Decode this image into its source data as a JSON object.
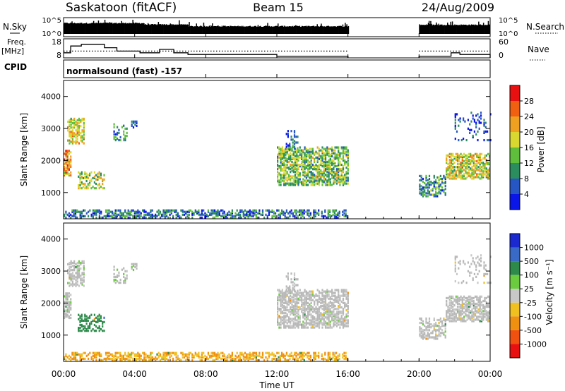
{
  "header": {
    "station": "Saskatoon (fitACF)",
    "beam": "Beam 15",
    "date": "24/Aug/2009"
  },
  "noise_panel": {
    "left_label": "N.Sky",
    "right_label": "N.Search",
    "left_ticks": [
      "10^5",
      "10^0"
    ],
    "right_ticks": [
      "10^5",
      "10^0"
    ]
  },
  "freq_panel": {
    "left_label_line1": "Freq.",
    "left_label_line2": "[MHz]",
    "right_label": "Nave",
    "left_ticks": [
      "18",
      "8"
    ],
    "right_ticks": [
      "60",
      "0"
    ]
  },
  "cpid": {
    "label": "CPID",
    "program": "normalsound (fast) -157"
  },
  "x_axis": {
    "ticks": [
      "00:00",
      "04:00",
      "08:00",
      "12:00",
      "16:00",
      "20:00",
      "00:00"
    ],
    "title": "Time UT"
  },
  "power_panel": {
    "ylabel": "Slant Range [km]",
    "yticks": [
      "1000",
      "2000",
      "3000",
      "4000"
    ],
    "colorbar_label": "Power [dB]",
    "colorbar_ticks": [
      "4",
      "8",
      "12",
      "16",
      "20",
      "24",
      "28"
    ],
    "colors": [
      "#0a16e8",
      "#2656c4",
      "#2b8c5e",
      "#5fbf3c",
      "#d8d830",
      "#f0a020",
      "#f06010",
      "#e81010"
    ]
  },
  "velocity_panel": {
    "ylabel": "Slant Range [km]",
    "yticks": [
      "1000",
      "2000",
      "3000",
      "4000"
    ],
    "colorbar_label": "Velocity [m s⁻¹]",
    "colorbar_ticks": [
      "1000",
      "500",
      "100",
      "25",
      "-25",
      "-100",
      "-500",
      "-1000"
    ],
    "colors": [
      "#1a2ad0",
      "#3a6ac8",
      "#2d8a4a",
      "#6ccc40",
      "#c8c8c8",
      "#f0c020",
      "#f09010",
      "#f05010",
      "#e81010"
    ],
    "ground_scatter_color": "#b8b8b8"
  },
  "chart_data": {
    "type": "heatmap",
    "x_unit": "hours UT",
    "xlim": [
      0,
      24
    ],
    "y_unit": "km",
    "ylim": [
      180,
      4500
    ],
    "data_gap_hours": [
      16,
      20
    ],
    "noise_series": [
      {
        "start": 0,
        "end": 4.5,
        "level": 0.72
      },
      {
        "start": 4.5,
        "end": 7.0,
        "level": 0.62
      },
      {
        "start": 7.0,
        "end": 16.0,
        "level": 0.5
      },
      {
        "start": 20.0,
        "end": 24.0,
        "level": 0.6
      }
    ],
    "freq_steps_mhz": [
      {
        "start": 0,
        "end": 0.4,
        "value": 11
      },
      {
        "start": 0.4,
        "end": 1.0,
        "value": 15
      },
      {
        "start": 1.0,
        "end": 2.3,
        "value": 16
      },
      {
        "start": 2.3,
        "end": 3.0,
        "value": 14
      },
      {
        "start": 3.0,
        "end": 4.3,
        "value": 12
      },
      {
        "start": 4.3,
        "end": 5.4,
        "value": 11
      },
      {
        "start": 5.4,
        "end": 6.2,
        "value": 13
      },
      {
        "start": 6.2,
        "end": 7.0,
        "value": 11
      },
      {
        "start": 7.0,
        "end": 12.0,
        "value": 10
      },
      {
        "start": 12.0,
        "end": 16.0,
        "value": 9
      },
      {
        "start": 20.0,
        "end": 21.8,
        "value": 9
      },
      {
        "start": 21.8,
        "end": 22.3,
        "value": 11
      },
      {
        "start": 22.3,
        "end": 24.0,
        "value": 10
      }
    ],
    "nave_reference_mhz": 12,
    "scatter_regions": [
      {
        "t0": 0.2,
        "t1": 1.1,
        "r0": 2500,
        "r1": 3300,
        "power_db": 18,
        "velocity": 25,
        "density": 0.55
      },
      {
        "t0": 0.0,
        "t1": 0.4,
        "r0": 1500,
        "r1": 2300,
        "power_db": 22,
        "velocity": 25,
        "density": 0.6
      },
      {
        "t0": 0.8,
        "t1": 2.3,
        "r0": 1100,
        "r1": 1600,
        "power_db": 16,
        "velocity": 200,
        "density": 0.45
      },
      {
        "t0": 2.8,
        "t1": 3.6,
        "r0": 2600,
        "r1": 3100,
        "power_db": 9,
        "velocity": 25,
        "density": 0.3
      },
      {
        "t0": 3.8,
        "t1": 4.1,
        "r0": 3000,
        "r1": 3200,
        "power_db": 6,
        "velocity": 25,
        "density": 0.4
      },
      {
        "t0": 12.0,
        "t1": 16.0,
        "r0": 1200,
        "r1": 2400,
        "power_db": 14,
        "velocity": 0,
        "density": 0.6
      },
      {
        "t0": 12.5,
        "t1": 13.2,
        "r0": 2300,
        "r1": 2900,
        "power_db": 6,
        "velocity": 0,
        "density": 0.25
      },
      {
        "t0": 20.0,
        "t1": 21.5,
        "r0": 850,
        "r1": 1500,
        "power_db": 10,
        "velocity": 0,
        "density": 0.5
      },
      {
        "t0": 21.5,
        "t1": 24.0,
        "r0": 1400,
        "r1": 2200,
        "power_db": 18,
        "velocity": 0,
        "density": 0.6
      },
      {
        "t0": 22.0,
        "t1": 24.0,
        "r0": 2600,
        "r1": 3500,
        "power_db": 5,
        "velocity": 0,
        "density": 0.15
      },
      {
        "t0": 0.0,
        "t1": 16.0,
        "r0": 180,
        "r1": 420,
        "power_db": 8,
        "velocity": -100,
        "density": 0.5
      }
    ]
  }
}
